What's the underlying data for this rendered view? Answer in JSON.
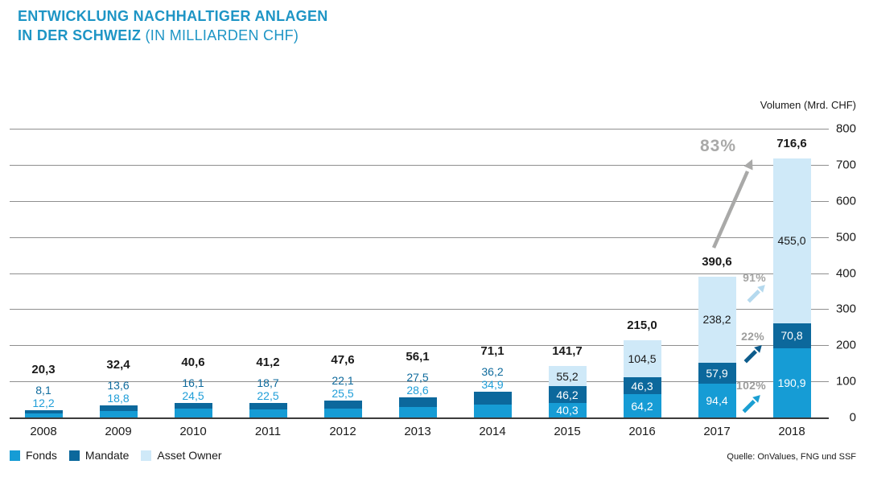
{
  "title": {
    "line1": "ENTWICKLUNG NACHHALTIGER ANLAGEN",
    "line2_bold": "IN DER SCHWEIZ",
    "line2_light": "(IN MILLIARDEN CHF)"
  },
  "axis": {
    "unit_label": "Volumen (Mrd. CHF)"
  },
  "source": "Quelle: OnValues, FNG und SSF",
  "colors": {
    "title": "#1e95c5",
    "gridline": "#8f8f8f",
    "baseline": "#3c3c3c",
    "text": "#1a1a1a"
  },
  "chart_data": {
    "type": "bar",
    "stacked": true,
    "title": "Entwicklung nachhaltiger Anlagen in der Schweiz (in Milliarden CHF)",
    "ylabel": "Volumen (Mrd. CHF)",
    "ylim": [
      0,
      800
    ],
    "yticks": [
      0,
      100,
      200,
      300,
      400,
      500,
      600,
      700,
      800
    ],
    "grid": true,
    "legend_position": "bottom-left",
    "categories": [
      "2008",
      "2009",
      "2010",
      "2011",
      "2012",
      "2013",
      "2014",
      "2015",
      "2016",
      "2017",
      "2018"
    ],
    "series": [
      {
        "name": "Fonds",
        "color": "#169cd5",
        "text_color": "#1f9ed8",
        "inside_text_color": "#ffffff",
        "values": [
          12.2,
          18.8,
          24.5,
          22.5,
          25.5,
          28.6,
          34.9,
          40.3,
          64.2,
          94.4,
          190.9
        ],
        "labels": [
          "12,2",
          "18,8",
          "24,5",
          "22,5",
          "25,5",
          "28,6",
          "34,9",
          "40,3",
          "64,2",
          "94,4",
          "190,9"
        ]
      },
      {
        "name": "Mandate",
        "color": "#0c689c",
        "text_color": "#0f6b9d",
        "inside_text_color": "#ffffff",
        "values": [
          8.1,
          13.6,
          16.1,
          18.7,
          22.1,
          27.5,
          36.2,
          46.2,
          46.3,
          57.9,
          70.8
        ],
        "labels": [
          "8,1",
          "13,6",
          "16,1",
          "18,7",
          "22,1",
          "27,5",
          "36,2",
          "46,2",
          "46,3",
          "57,9",
          "70,8"
        ]
      },
      {
        "name": "Asset Owner",
        "color": "#cfe9f8",
        "text_color": "#1a1a1a",
        "inside_text_color": "#1a1a1a",
        "values": [
          null,
          null,
          null,
          null,
          null,
          null,
          null,
          55.2,
          104.5,
          238.2,
          455.0
        ],
        "labels": [
          null,
          null,
          null,
          null,
          null,
          null,
          null,
          "55,2",
          "104,5",
          "238,2",
          "455,0"
        ]
      }
    ],
    "totals": [
      "20,3",
      "32,4",
      "40,6",
      "41,2",
      "47,6",
      "56,1",
      "71,1",
      "141,7",
      "215,0",
      "390,6",
      "716,6"
    ],
    "labels_inside_from_index": 7,
    "annotations": {
      "total_growth": {
        "text": "83%",
        "color": "#a9a9a8",
        "arrow_color": "#a9a9a8"
      },
      "asset_owner_growth": {
        "text": "91%",
        "color": "#a5a5a4",
        "arrow_color": "#b5d9ee"
      },
      "mandate_growth": {
        "text": "22%",
        "color": "#9d9d9c",
        "arrow_color": "#0d5c8c"
      },
      "fonds_growth": {
        "text": "102%",
        "color": "#9d9d9c",
        "arrow_color": "#1b9fd2"
      }
    }
  }
}
